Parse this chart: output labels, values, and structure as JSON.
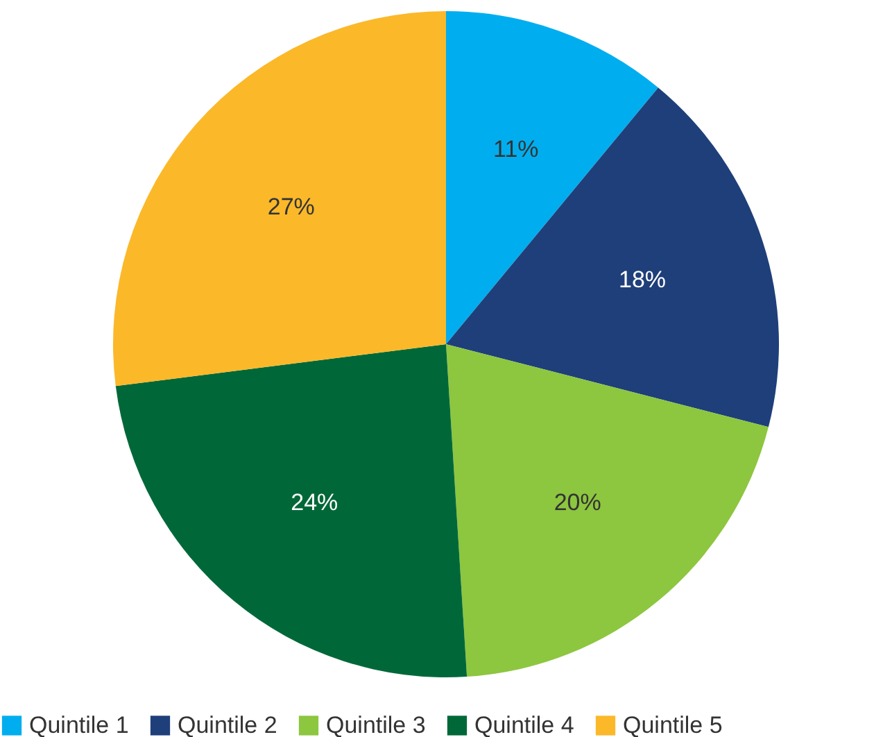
{
  "chart_data": {
    "type": "pie",
    "categories": [
      "Quintile 1",
      "Quintile 2",
      "Quintile 3",
      "Quintile 4",
      "Quintile 5"
    ],
    "values": [
      11,
      18,
      20,
      24,
      27
    ],
    "colors": [
      "#00aeef",
      "#1f3f7a",
      "#8dc63f",
      "#006838",
      "#fbb829"
    ],
    "value_labels": [
      "11%",
      "18%",
      "20%",
      "24%",
      "27%"
    ],
    "legend": "bottom"
  }
}
